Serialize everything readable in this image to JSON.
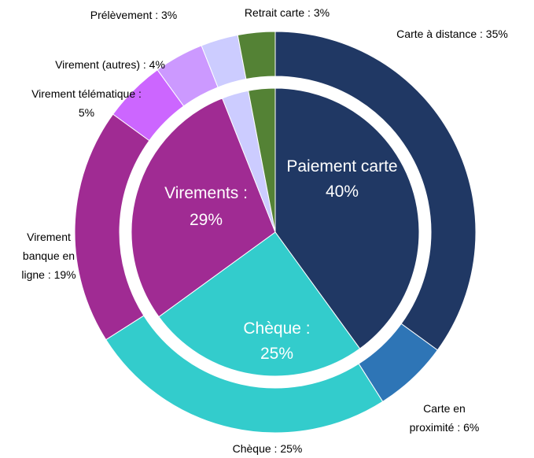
{
  "chart_data": {
    "type": "sunburst",
    "inner": {
      "value_labels": [
        "Paiement carte\n40%",
        "Chèque :\n25%",
        "Virements :\n29%",
        null,
        null
      ],
      "values": [
        40,
        25,
        29,
        3,
        3
      ],
      "colors": [
        "#203864",
        "#33cccc",
        "#a02b93",
        "#ccccff",
        "#548235"
      ]
    },
    "outer": {
      "value_labels": [
        "Carte à distance : 35%",
        "Carte en\nproximité : 6%",
        "Chèque : 25%",
        "Virement\nbanque en\nligne : 19%",
        "Virement télématique :\n5%",
        "Virement (autres) : 4%",
        "Prélèvement : 3%",
        "Retrait carte : 3%"
      ],
      "values": [
        35,
        6,
        25,
        19,
        5,
        4,
        3,
        3
      ],
      "colors": [
        "#203864",
        "#2e75b6",
        "#33cccc",
        "#a02b93",
        "#cc66ff",
        "#cc99ff",
        "#ccccff",
        "#548235"
      ]
    }
  }
}
